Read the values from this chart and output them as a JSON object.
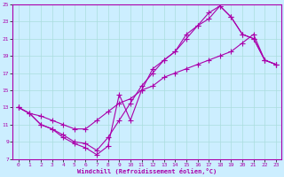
{
  "xlabel": "Windchill (Refroidissement éolien,°C)",
  "bg_color": "#cceeff",
  "line_color": "#aa00aa",
  "grid_color": "#aadddd",
  "xlim": [
    -0.5,
    23.5
  ],
  "ylim": [
    7,
    25
  ],
  "xticks": [
    0,
    1,
    2,
    3,
    4,
    5,
    6,
    7,
    8,
    9,
    10,
    11,
    12,
    13,
    14,
    15,
    16,
    17,
    18,
    19,
    20,
    21,
    22,
    23
  ],
  "yticks": [
    7,
    9,
    11,
    13,
    15,
    17,
    19,
    21,
    23,
    25
  ],
  "line1_x": [
    0,
    1,
    2,
    3,
    4,
    5,
    6,
    7,
    8,
    9,
    10,
    11,
    12,
    13,
    14,
    15,
    16,
    17,
    18,
    19,
    20,
    21,
    22,
    23
  ],
  "line1_y": [
    13.0,
    12.3,
    11.0,
    10.5,
    9.5,
    8.8,
    8.3,
    7.5,
    8.5,
    14.5,
    11.5,
    15.0,
    17.5,
    18.5,
    19.5,
    21.5,
    22.5,
    23.3,
    24.8,
    23.5,
    21.5,
    21.0,
    18.5,
    18.0
  ],
  "line2_x": [
    0,
    1,
    2,
    3,
    4,
    5,
    6,
    7,
    8,
    9,
    10,
    11,
    12,
    13,
    14,
    15,
    16,
    17,
    18,
    19,
    20,
    21,
    22,
    23
  ],
  "line2_y": [
    13.0,
    12.3,
    11.0,
    10.5,
    9.8,
    9.0,
    8.8,
    8.0,
    9.5,
    11.5,
    13.5,
    15.5,
    17.0,
    18.5,
    19.5,
    21.0,
    22.5,
    24.0,
    24.8,
    23.5,
    21.5,
    21.0,
    18.5,
    18.0
  ],
  "line3_x": [
    0,
    1,
    2,
    3,
    4,
    5,
    6,
    7,
    8,
    9,
    10,
    11,
    12,
    13,
    14,
    15,
    16,
    17,
    18,
    19,
    20,
    21,
    22,
    23
  ],
  "line3_y": [
    13.0,
    12.3,
    12.0,
    11.5,
    11.0,
    10.5,
    10.5,
    11.5,
    12.5,
    13.5,
    14.0,
    15.0,
    15.5,
    16.5,
    17.0,
    17.5,
    18.0,
    18.5,
    19.0,
    19.5,
    20.5,
    21.5,
    18.5,
    18.0
  ]
}
